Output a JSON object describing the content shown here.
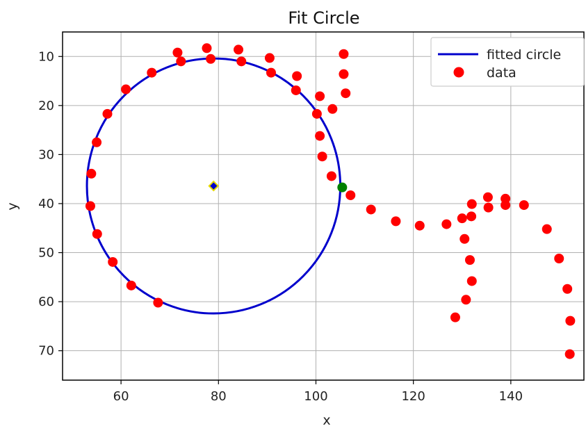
{
  "chart_data": {
    "type": "scatter",
    "title": "Fit Circle",
    "xlabel": "x",
    "ylabel": "y",
    "xlim": [
      48,
      155
    ],
    "ylim": [
      76,
      5
    ],
    "y_inverted": true,
    "xticks": [
      60,
      80,
      100,
      120,
      140
    ],
    "yticks": [
      10,
      20,
      30,
      40,
      50,
      60,
      70
    ],
    "grid": true,
    "legend": {
      "placement": "top-right",
      "entries": [
        "fitted circle",
        "data"
      ]
    },
    "colors": {
      "circle": "#0000cc",
      "data": "#ff0000",
      "point": "#008000",
      "center_fill": "#0000cc",
      "center_edge": "#e6d800"
    },
    "series": [
      {
        "name": "fitted circle",
        "kind": "circle",
        "center": [
          79,
          36.4
        ],
        "radius": 26
      },
      {
        "name": "data",
        "kind": "scatter",
        "points": [
          [
            71.6,
            9.2
          ],
          [
            72.3,
            11.0
          ],
          [
            77.6,
            8.3
          ],
          [
            78.4,
            10.5
          ],
          [
            84.1,
            8.6
          ],
          [
            84.7,
            11.0
          ],
          [
            90.5,
            10.3
          ],
          [
            90.8,
            13.3
          ],
          [
            96.1,
            14.0
          ],
          [
            95.9,
            16.9
          ],
          [
            100.8,
            18.1
          ],
          [
            103.4,
            20.7
          ],
          [
            105.7,
            9.5
          ],
          [
            105.7,
            13.6
          ],
          [
            106.1,
            17.5
          ],
          [
            100.2,
            21.7
          ],
          [
            100.8,
            26.2
          ],
          [
            101.3,
            30.4
          ],
          [
            103.2,
            34.4
          ],
          [
            107.1,
            38.3
          ],
          [
            111.3,
            41.2
          ],
          [
            116.4,
            43.6
          ],
          [
            121.3,
            44.5
          ],
          [
            126.8,
            44.2
          ],
          [
            130.0,
            43.0
          ],
          [
            131.9,
            42.6
          ],
          [
            132.0,
            40.1
          ],
          [
            135.3,
            38.7
          ],
          [
            135.4,
            40.8
          ],
          [
            138.9,
            39.0
          ],
          [
            138.9,
            40.3
          ],
          [
            142.7,
            40.3
          ],
          [
            147.4,
            45.2
          ],
          [
            149.9,
            51.2
          ],
          [
            151.6,
            57.4
          ],
          [
            152.2,
            63.9
          ],
          [
            152.1,
            70.7
          ],
          [
            130.5,
            47.2
          ],
          [
            131.6,
            51.5
          ],
          [
            132.0,
            55.8
          ],
          [
            130.8,
            59.6
          ],
          [
            128.6,
            63.2
          ],
          [
            67.6,
            60.2
          ],
          [
            62.1,
            56.7
          ],
          [
            58.3,
            51.9
          ],
          [
            55.1,
            46.2
          ],
          [
            53.7,
            40.5
          ],
          [
            53.9,
            33.9
          ],
          [
            55.0,
            27.5
          ],
          [
            57.2,
            21.7
          ],
          [
            61.0,
            16.7
          ],
          [
            66.3,
            13.3
          ]
        ]
      },
      {
        "kind": "point",
        "x": 105.4,
        "y": 36.7
      },
      {
        "kind": "center",
        "x": 79,
        "y": 36.4
      }
    ]
  }
}
